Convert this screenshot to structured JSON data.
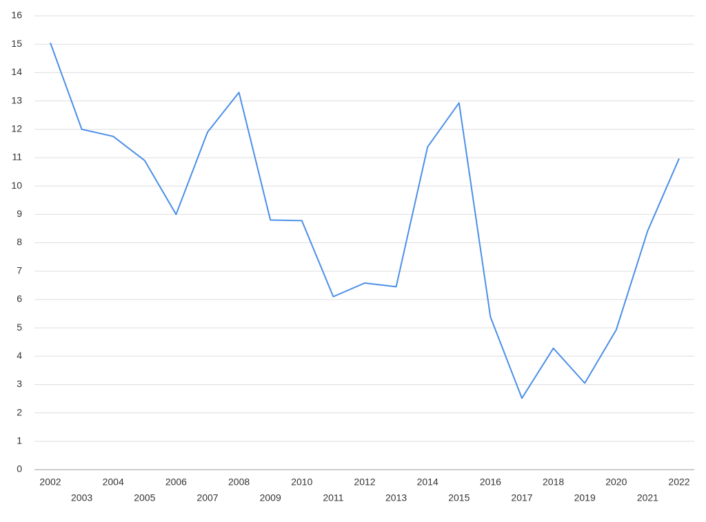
{
  "chart_data": {
    "type": "line",
    "categories": [
      "2002",
      "2003",
      "2004",
      "2005",
      "2006",
      "2007",
      "2008",
      "2009",
      "2010",
      "2011",
      "2012",
      "2013",
      "2014",
      "2015",
      "2016",
      "2017",
      "2018",
      "2019",
      "2020",
      "2021",
      "2022"
    ],
    "series": [
      {
        "color": "#4a8fe7",
        "values": [
          15.05,
          12.0,
          11.75,
          10.9,
          9.0,
          11.9,
          13.3,
          8.8,
          8.78,
          6.1,
          6.58,
          6.45,
          11.38,
          12.93,
          5.38,
          2.52,
          4.28,
          3.05,
          4.93,
          8.42,
          10.97
        ]
      }
    ],
    "ylim": [
      0,
      16
    ],
    "yticks": [
      0,
      1,
      2,
      3,
      4,
      5,
      6,
      7,
      8,
      9,
      10,
      11,
      12,
      13,
      14,
      15,
      16
    ],
    "grid": true
  }
}
